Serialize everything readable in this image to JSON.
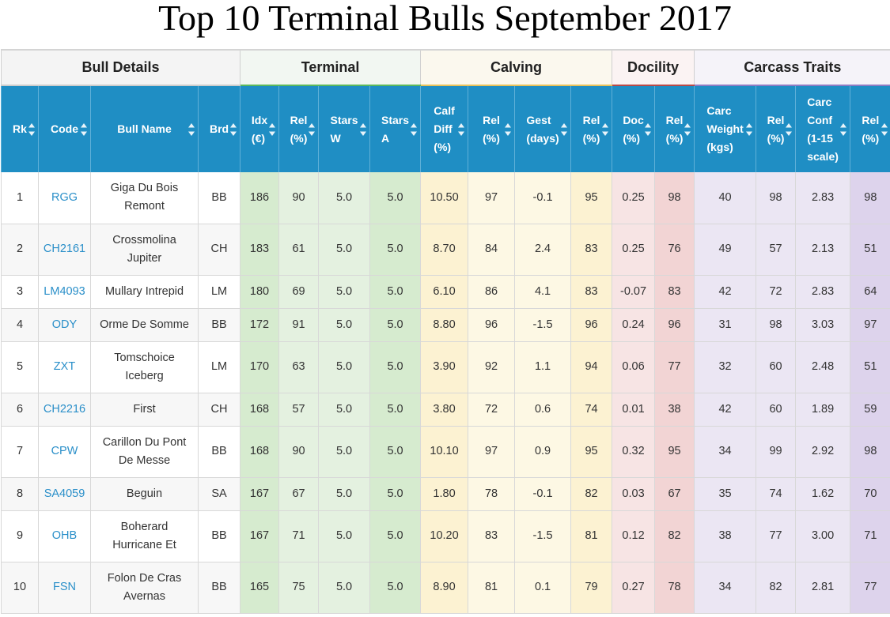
{
  "title": "Top 10 Terminal Bulls September 2017",
  "groups": {
    "bull": "Bull Details",
    "terminal": "Terminal",
    "calving": "Calving",
    "docility": "Docility",
    "carcass": "Carcass Traits"
  },
  "columns": {
    "rk": [
      "Rk"
    ],
    "code": [
      "Code"
    ],
    "name": [
      "Bull Name"
    ],
    "brd": [
      "Brd"
    ],
    "idx": [
      "Idx",
      "(€)"
    ],
    "rel1": [
      "Rel",
      "(%)"
    ],
    "starsw": [
      "Stars",
      "W"
    ],
    "starsa": [
      "Stars",
      "A"
    ],
    "calf": [
      "Calf",
      "Diff",
      "(%)"
    ],
    "rel2": [
      "Rel",
      "(%)"
    ],
    "gest": [
      "Gest",
      "(days)"
    ],
    "rel3": [
      "Rel",
      "(%)"
    ],
    "doc": [
      "Doc",
      "(%)"
    ],
    "rel4": [
      "Rel",
      "(%)"
    ],
    "carcw": [
      "Carc",
      "Weight",
      "(kgs)"
    ],
    "rel5": [
      "Rel",
      "(%)"
    ],
    "carcc": [
      "Carc",
      "Conf",
      "(1-15",
      "scale)"
    ],
    "rel6": [
      "Rel",
      "(%)"
    ]
  },
  "icons": {
    "sort": "sort-both-icon"
  },
  "rows": [
    {
      "rk": "1",
      "code": "RGG",
      "name": [
        "Giga Du Bois",
        "Remont"
      ],
      "brd": "BB",
      "idx": "186",
      "rel1": "90",
      "starsw": "5.0",
      "starsa": "5.0",
      "calf": "10.50",
      "rel2": "97",
      "gest": "-0.1",
      "rel3": "95",
      "doc": "0.25",
      "rel4": "98",
      "carcw": "40",
      "rel5": "98",
      "carcc": "2.83",
      "rel6": "98"
    },
    {
      "rk": "2",
      "code": "CH2161",
      "name": [
        "Crossmolina",
        "Jupiter"
      ],
      "brd": "CH",
      "idx": "183",
      "rel1": "61",
      "starsw": "5.0",
      "starsa": "5.0",
      "calf": "8.70",
      "rel2": "84",
      "gest": "2.4",
      "rel3": "83",
      "doc": "0.25",
      "rel4": "76",
      "carcw": "49",
      "rel5": "57",
      "carcc": "2.13",
      "rel6": "51"
    },
    {
      "rk": "3",
      "code": "LM4093",
      "name": [
        "Mullary Intrepid"
      ],
      "brd": "LM",
      "idx": "180",
      "rel1": "69",
      "starsw": "5.0",
      "starsa": "5.0",
      "calf": "6.10",
      "rel2": "86",
      "gest": "4.1",
      "rel3": "83",
      "doc": "-0.07",
      "rel4": "83",
      "carcw": "42",
      "rel5": "72",
      "carcc": "2.83",
      "rel6": "64"
    },
    {
      "rk": "4",
      "code": "ODY",
      "name": [
        "Orme De Somme"
      ],
      "brd": "BB",
      "idx": "172",
      "rel1": "91",
      "starsw": "5.0",
      "starsa": "5.0",
      "calf": "8.80",
      "rel2": "96",
      "gest": "-1.5",
      "rel3": "96",
      "doc": "0.24",
      "rel4": "96",
      "carcw": "31",
      "rel5": "98",
      "carcc": "3.03",
      "rel6": "97"
    },
    {
      "rk": "5",
      "code": "ZXT",
      "name": [
        "Tomschoice",
        "Iceberg"
      ],
      "brd": "LM",
      "idx": "170",
      "rel1": "63",
      "starsw": "5.0",
      "starsa": "5.0",
      "calf": "3.90",
      "rel2": "92",
      "gest": "1.1",
      "rel3": "94",
      "doc": "0.06",
      "rel4": "77",
      "carcw": "32",
      "rel5": "60",
      "carcc": "2.48",
      "rel6": "51"
    },
    {
      "rk": "6",
      "code": "CH2216",
      "name": [
        "First"
      ],
      "brd": "CH",
      "idx": "168",
      "rel1": "57",
      "starsw": "5.0",
      "starsa": "5.0",
      "calf": "3.80",
      "rel2": "72",
      "gest": "0.6",
      "rel3": "74",
      "doc": "0.01",
      "rel4": "38",
      "carcw": "42",
      "rel5": "60",
      "carcc": "1.89",
      "rel6": "59"
    },
    {
      "rk": "7",
      "code": "CPW",
      "name": [
        "Carillon Du Pont",
        "De Messe"
      ],
      "brd": "BB",
      "idx": "168",
      "rel1": "90",
      "starsw": "5.0",
      "starsa": "5.0",
      "calf": "10.10",
      "rel2": "97",
      "gest": "0.9",
      "rel3": "95",
      "doc": "0.32",
      "rel4": "95",
      "carcw": "34",
      "rel5": "99",
      "carcc": "2.92",
      "rel6": "98"
    },
    {
      "rk": "8",
      "code": "SA4059",
      "name": [
        "Beguin"
      ],
      "brd": "SA",
      "idx": "167",
      "rel1": "67",
      "starsw": "5.0",
      "starsa": "5.0",
      "calf": "1.80",
      "rel2": "78",
      "gest": "-0.1",
      "rel3": "82",
      "doc": "0.03",
      "rel4": "67",
      "carcw": "35",
      "rel5": "74",
      "carcc": "1.62",
      "rel6": "70"
    },
    {
      "rk": "9",
      "code": "OHB",
      "name": [
        "Boherard",
        "Hurricane Et"
      ],
      "brd": "BB",
      "idx": "167",
      "rel1": "71",
      "starsw": "5.0",
      "starsa": "5.0",
      "calf": "10.20",
      "rel2": "83",
      "gest": "-1.5",
      "rel3": "81",
      "doc": "0.12",
      "rel4": "82",
      "carcw": "38",
      "rel5": "77",
      "carcc": "3.00",
      "rel6": "71"
    },
    {
      "rk": "10",
      "code": "FSN",
      "name": [
        "Folon De Cras",
        "Avernas"
      ],
      "brd": "BB",
      "idx": "165",
      "rel1": "75",
      "starsw": "5.0",
      "starsa": "5.0",
      "calf": "8.90",
      "rel2": "81",
      "gest": "0.1",
      "rel3": "79",
      "doc": "0.27",
      "rel4": "78",
      "carcw": "34",
      "rel5": "82",
      "carcc": "2.81",
      "rel6": "77"
    }
  ]
}
